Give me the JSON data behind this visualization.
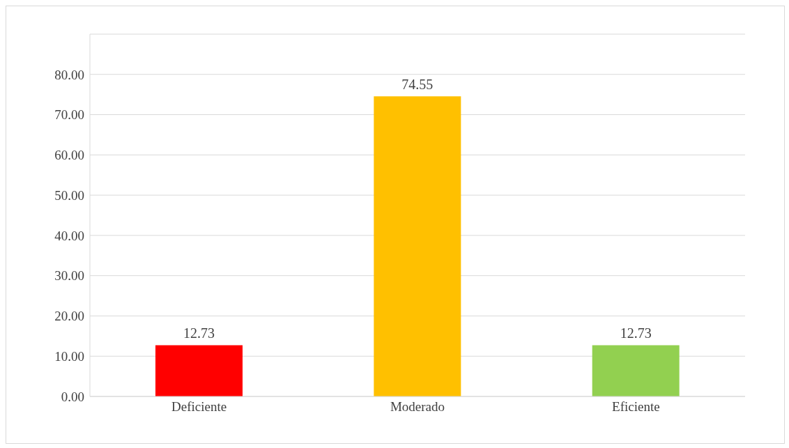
{
  "chart_data": {
    "type": "bar",
    "categories": [
      "Deficiente",
      "Moderado",
      "Eficiente"
    ],
    "values": [
      12.73,
      74.55,
      12.73
    ],
    "colors": [
      "#ff0000",
      "#ffc000",
      "#92d050"
    ],
    "ylim": [
      0,
      90
    ],
    "yticks": [
      {
        "value": 0,
        "label": "0.00"
      },
      {
        "value": 10,
        "label": "10.00"
      },
      {
        "value": 20,
        "label": "20.00"
      },
      {
        "value": 30,
        "label": "30.00"
      },
      {
        "value": 40,
        "label": "40.00"
      },
      {
        "value": 50,
        "label": "50.00"
      },
      {
        "value": 60,
        "label": "60.00"
      },
      {
        "value": 70,
        "label": "70.00"
      },
      {
        "value": 80,
        "label": "80.00"
      },
      {
        "value": 90,
        "label": null
      }
    ],
    "grid": "y",
    "data_labels": true,
    "legend": false
  }
}
